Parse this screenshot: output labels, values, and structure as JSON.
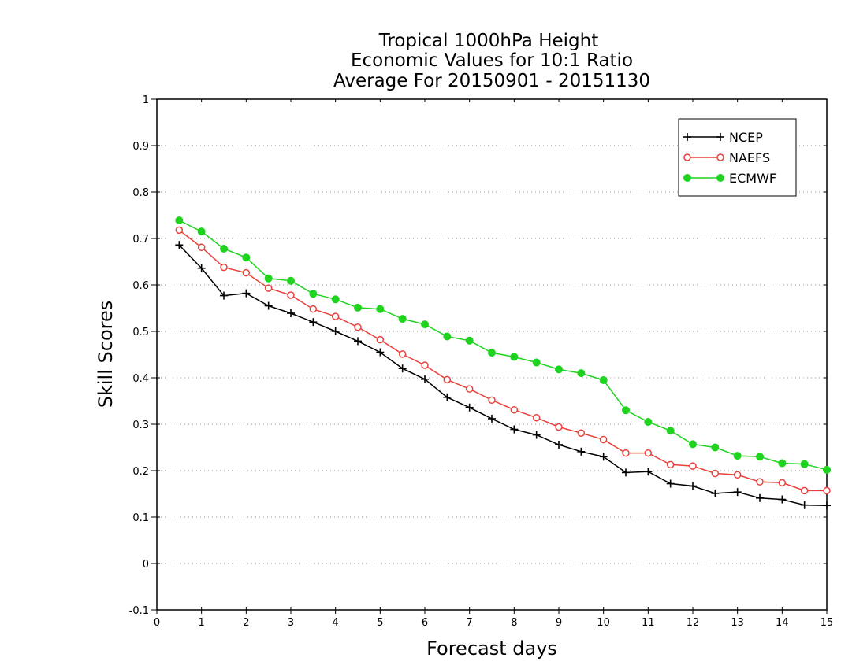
{
  "chart_data": {
    "type": "line",
    "title_lines": [
      "Tropical 1000hPa Height",
      "Economic Values for 10:1 Ratio",
      "Average For 20150901 - 20151130"
    ],
    "xlabel": "Forecast days",
    "ylabel": "Skill Scores",
    "xlim": [
      0,
      15
    ],
    "ylim": [
      -0.1,
      1
    ],
    "xticks": [
      0,
      1,
      2,
      3,
      4,
      5,
      6,
      7,
      8,
      9,
      10,
      11,
      12,
      13,
      14,
      15
    ],
    "xtick_labels": [
      "0",
      "1",
      "2",
      "3",
      "4",
      "5",
      "6",
      "7",
      "8",
      "9",
      "10",
      "11",
      "12",
      "13",
      "14",
      "15"
    ],
    "yticks": [
      -0.1,
      0,
      0.1,
      0.2,
      0.3,
      0.4,
      0.5,
      0.6,
      0.7,
      0.8,
      0.9,
      1
    ],
    "ytick_labels": [
      "-0.1",
      "0",
      "0.1",
      "0.2",
      "0.3",
      "0.4",
      "0.5",
      "0.6",
      "0.7",
      "0.8",
      "0.9",
      "1"
    ],
    "grid": "horizontal dotted",
    "legend_position": "top-right",
    "x": [
      0.5,
      1,
      1.5,
      2,
      2.5,
      3,
      3.5,
      4,
      4.5,
      5,
      5.5,
      6,
      6.5,
      7,
      7.5,
      8,
      8.5,
      9,
      9.5,
      10,
      10.5,
      11,
      11.5,
      12,
      12.5,
      13,
      13.5,
      14,
      14.5,
      15
    ],
    "series": [
      {
        "name": "NCEP",
        "color": "#000000",
        "marker": "plus",
        "values": [
          0.686,
          0.636,
          0.577,
          0.582,
          0.555,
          0.539,
          0.52,
          0.5,
          0.479,
          0.455,
          0.42,
          0.397,
          0.358,
          0.336,
          0.312,
          0.289,
          0.277,
          0.256,
          0.241,
          0.23,
          0.196,
          0.198,
          0.172,
          0.167,
          0.151,
          0.154,
          0.141,
          0.138,
          0.126,
          0.125
        ]
      },
      {
        "name": "NAEFS",
        "color": "#e8413b",
        "marker": "open-circle",
        "values": [
          0.718,
          0.681,
          0.638,
          0.626,
          0.593,
          0.578,
          0.548,
          0.532,
          0.509,
          0.482,
          0.451,
          0.427,
          0.396,
          0.376,
          0.352,
          0.331,
          0.314,
          0.294,
          0.281,
          0.267,
          0.238,
          0.238,
          0.213,
          0.21,
          0.194,
          0.191,
          0.176,
          0.174,
          0.157,
          0.157
        ]
      },
      {
        "name": "ECMWF",
        "color": "#1fd31f",
        "marker": "filled-circle",
        "values": [
          0.739,
          0.715,
          0.678,
          0.659,
          0.614,
          0.609,
          0.581,
          0.569,
          0.551,
          0.548,
          0.527,
          0.515,
          0.489,
          0.48,
          0.454,
          0.445,
          0.433,
          0.418,
          0.41,
          0.395,
          0.33,
          0.305,
          0.286,
          0.257,
          0.25,
          0.232,
          0.23,
          0.216,
          0.214,
          0.202
        ]
      }
    ]
  }
}
